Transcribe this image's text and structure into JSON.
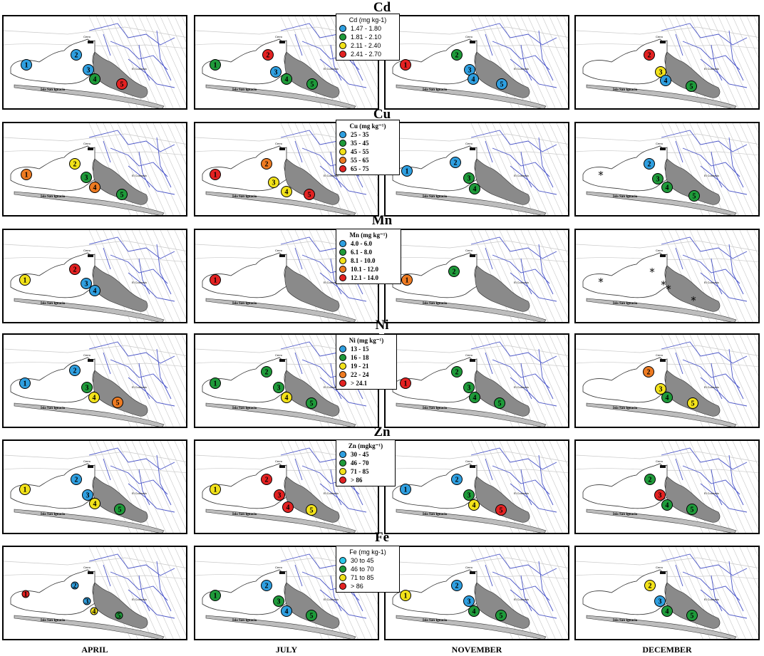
{
  "colors": {
    "blue": "#2f9fe0",
    "green": "#1f9a3a",
    "yellow": "#f2e21a",
    "orange": "#ee7b22",
    "red": "#e32222",
    "cyan": "#2cc7e8"
  },
  "months": [
    "APRIL",
    "JULY",
    "NOVEMBER",
    "DECEMBER"
  ],
  "map_labels": {
    "island": "Isla San Ignacio",
    "cerro": "Cerro",
    "colorado": "El Colorado"
  },
  "rows": [
    {
      "title": "Cd",
      "legend": {
        "title": "Cd (mg kg-1)",
        "style": "sans",
        "items": [
          {
            "label": "1.47 - 1.80",
            "color": "blue"
          },
          {
            "label": "1.81 - 2.10",
            "color": "green"
          },
          {
            "label": "2.11 - 2.40",
            "color": "yellow"
          },
          {
            "label": "2.41 - 2.70",
            "color": "red"
          }
        ]
      },
      "panels": [
        [
          {
            "site": "1",
            "color": "blue"
          },
          {
            "site": "2",
            "color": "blue"
          },
          {
            "site": "3",
            "color": "blue"
          },
          {
            "site": "4",
            "color": "green"
          },
          {
            "site": "5",
            "color": "red"
          }
        ],
        [
          {
            "site": "1",
            "color": "green"
          },
          {
            "site": "2",
            "color": "red"
          },
          {
            "site": "3",
            "color": "blue"
          },
          {
            "site": "4",
            "color": "green"
          },
          {
            "site": "5",
            "color": "green"
          }
        ],
        [
          {
            "site": "1",
            "color": "red"
          },
          {
            "site": "2",
            "color": "green"
          },
          {
            "site": "3",
            "color": "blue"
          },
          {
            "site": "4",
            "color": "blue"
          },
          {
            "site": "5",
            "color": "blue"
          }
        ],
        [
          {
            "site": "2",
            "color": "red"
          },
          {
            "site": "3",
            "color": "yellow"
          },
          {
            "site": "4",
            "color": "blue"
          },
          {
            "site": "5",
            "color": "green"
          }
        ]
      ]
    },
    {
      "title": "Cu",
      "legend": {
        "title": "Cu (mg kg⁻¹)",
        "style": "serif",
        "items": [
          {
            "label": "25 - 35",
            "color": "blue"
          },
          {
            "label": "35 - 45",
            "color": "green"
          },
          {
            "label": "45 - 55",
            "color": "yellow"
          },
          {
            "label": "55 - 65",
            "color": "orange"
          },
          {
            "label": "65 - 75",
            "color": "red"
          }
        ]
      },
      "panels": [
        [
          {
            "site": "1",
            "color": "orange"
          },
          {
            "site": "2",
            "color": "yellow"
          },
          {
            "site": "3",
            "color": "green"
          },
          {
            "site": "4",
            "color": "orange"
          },
          {
            "site": "5",
            "color": "green"
          }
        ],
        [
          {
            "site": "1",
            "color": "red"
          },
          {
            "site": "2",
            "color": "orange"
          },
          {
            "site": "3",
            "color": "yellow"
          },
          {
            "site": "4",
            "color": "yellow"
          },
          {
            "site": "5",
            "color": "red"
          }
        ],
        [
          {
            "site": "1",
            "color": "blue"
          },
          {
            "site": "2",
            "color": "blue"
          },
          {
            "site": "3",
            "color": "green"
          },
          {
            "site": "4",
            "color": "green"
          }
        ],
        [
          {
            "site": "1",
            "color": "asterisk"
          },
          {
            "site": "2",
            "color": "blue"
          },
          {
            "site": "3",
            "color": "green"
          },
          {
            "site": "4",
            "color": "green"
          },
          {
            "site": "5",
            "color": "green"
          }
        ]
      ]
    },
    {
      "title": "Mn",
      "legend": {
        "title": "Mn (mg kg⁻¹)",
        "style": "serif",
        "items": [
          {
            "label": "4.0 - 6.0",
            "color": "blue"
          },
          {
            "label": "6.1 - 8.0",
            "color": "green"
          },
          {
            "label": "8.1 - 10.0",
            "color": "yellow"
          },
          {
            "label": "10.1 - 12.0",
            "color": "orange"
          },
          {
            "label": "12.1 - 14.0",
            "color": "red"
          }
        ]
      },
      "panels": [
        [
          {
            "site": "1",
            "color": "yellow"
          },
          {
            "site": "2",
            "color": "red"
          },
          {
            "site": "3",
            "color": "blue"
          },
          {
            "site": "4",
            "color": "blue"
          }
        ],
        [
          {
            "site": "1",
            "color": "red"
          }
        ],
        [
          {
            "site": "1",
            "color": "orange"
          },
          {
            "site": "2",
            "color": "green"
          }
        ],
        [
          {
            "site": "1",
            "color": "asterisk"
          },
          {
            "site": "2",
            "color": "asterisk"
          },
          {
            "site": "3",
            "color": "asterisk"
          },
          {
            "site": "4",
            "color": "asterisk"
          },
          {
            "site": "5",
            "color": "asterisk"
          }
        ]
      ]
    },
    {
      "title": "Ni",
      "legend": {
        "title": "Ni (mg kg⁻¹)",
        "style": "serif",
        "items": [
          {
            "label": "13 - 15",
            "color": "blue"
          },
          {
            "label": "16 - 18",
            "color": "green"
          },
          {
            "label": "19 - 21",
            "color": "yellow"
          },
          {
            "label": "22 - 24",
            "color": "orange"
          },
          {
            "label": "> 24.1",
            "color": "red"
          }
        ]
      },
      "panels": [
        [
          {
            "site": "1",
            "color": "blue"
          },
          {
            "site": "2",
            "color": "blue"
          },
          {
            "site": "3",
            "color": "green"
          },
          {
            "site": "4",
            "color": "yellow"
          },
          {
            "site": "5",
            "color": "orange"
          }
        ],
        [
          {
            "site": "1",
            "color": "green"
          },
          {
            "site": "2",
            "color": "green"
          },
          {
            "site": "3",
            "color": "green"
          },
          {
            "site": "4",
            "color": "yellow"
          },
          {
            "site": "5",
            "color": "green"
          }
        ],
        [
          {
            "site": "1",
            "color": "red"
          },
          {
            "site": "2",
            "color": "green"
          },
          {
            "site": "3",
            "color": "green"
          },
          {
            "site": "4",
            "color": "green"
          },
          {
            "site": "5",
            "color": "green"
          }
        ],
        [
          {
            "site": "2",
            "color": "orange"
          },
          {
            "site": "3",
            "color": "yellow"
          },
          {
            "site": "4",
            "color": "green"
          },
          {
            "site": "5",
            "color": "yellow"
          }
        ]
      ]
    },
    {
      "title": "Zn",
      "legend": {
        "title": "Zn (mgkg⁻¹)",
        "style": "serif",
        "items": [
          {
            "label": "30 - 45",
            "color": "blue"
          },
          {
            "label": "46 - 70",
            "color": "green"
          },
          {
            "label": "71 - 85",
            "color": "yellow"
          },
          {
            "label": "> 86",
            "color": "red"
          }
        ]
      },
      "panels": [
        [
          {
            "site": "1",
            "color": "yellow"
          },
          {
            "site": "2",
            "color": "blue"
          },
          {
            "site": "3",
            "color": "blue"
          },
          {
            "site": "4",
            "color": "yellow"
          },
          {
            "site": "5",
            "color": "green"
          }
        ],
        [
          {
            "site": "1",
            "color": "yellow"
          },
          {
            "site": "2",
            "color": "red"
          },
          {
            "site": "3",
            "color": "red"
          },
          {
            "site": "4",
            "color": "red"
          },
          {
            "site": "5",
            "color": "yellow"
          }
        ],
        [
          {
            "site": "1",
            "color": "blue"
          },
          {
            "site": "2",
            "color": "blue"
          },
          {
            "site": "3",
            "color": "green"
          },
          {
            "site": "4",
            "color": "yellow"
          },
          {
            "site": "5",
            "color": "red"
          }
        ],
        [
          {
            "site": "2",
            "color": "green"
          },
          {
            "site": "3",
            "color": "red"
          },
          {
            "site": "4",
            "color": "green"
          },
          {
            "site": "5",
            "color": "green"
          }
        ]
      ]
    },
    {
      "title": "Fe",
      "legend": {
        "title": "Fe (mg kg-1)",
        "style": "sans",
        "items": [
          {
            "label": "30 to 45",
            "color": "cyan"
          },
          {
            "label": "46 to 70",
            "color": "green"
          },
          {
            "label": "71 to 85",
            "color": "yellow"
          },
          {
            "label": "> 86",
            "color": "red"
          }
        ]
      },
      "panels": [
        [
          {
            "site": "1",
            "color": "red"
          },
          {
            "site": "2",
            "color": "blue"
          },
          {
            "site": "3",
            "color": "blue"
          },
          {
            "site": "4",
            "color": "yellow"
          },
          {
            "site": "5",
            "color": "green"
          }
        ],
        [
          {
            "site": "1",
            "color": "green"
          },
          {
            "site": "2",
            "color": "blue"
          },
          {
            "site": "3",
            "color": "green"
          },
          {
            "site": "4",
            "color": "blue"
          },
          {
            "site": "5",
            "color": "green"
          }
        ],
        [
          {
            "site": "1",
            "color": "yellow"
          },
          {
            "site": "2",
            "color": "blue"
          },
          {
            "site": "3",
            "color": "blue"
          },
          {
            "site": "4",
            "color": "green"
          },
          {
            "site": "5",
            "color": "green"
          }
        ],
        [
          {
            "site": "2",
            "color": "yellow"
          },
          {
            "site": "3",
            "color": "blue"
          },
          {
            "site": "4",
            "color": "green"
          },
          {
            "site": "5",
            "color": "green"
          }
        ]
      ]
    }
  ]
}
